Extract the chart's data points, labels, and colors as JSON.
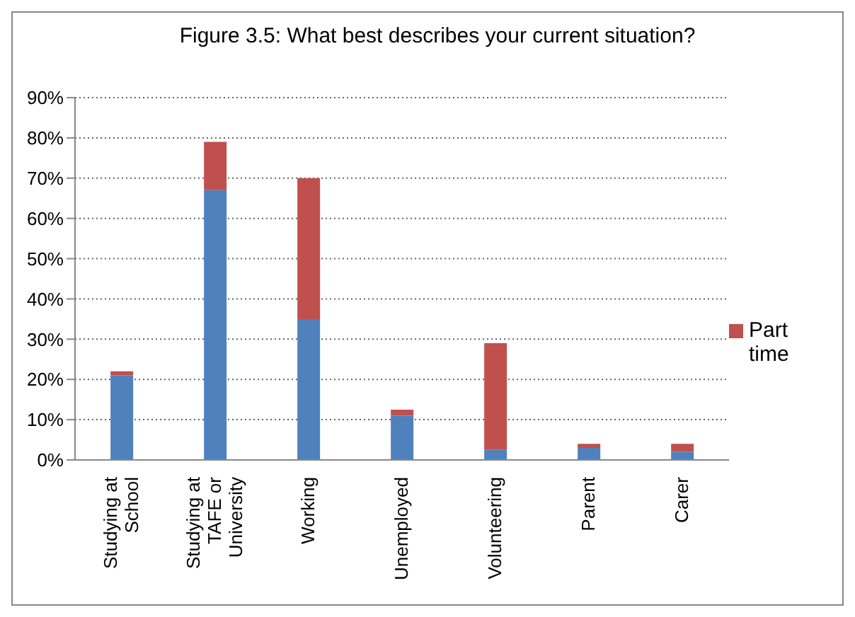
{
  "chart_data": {
    "type": "bar",
    "title": "Figure 3.5: What best describes your current situation?",
    "categories": [
      "Studying at School",
      "Studying at TAFE or University",
      "Working",
      "Unemployed",
      "Volunteering",
      "Parent",
      "Carer"
    ],
    "stacked": true,
    "series": [
      {
        "color": "#4f81bd",
        "values": [
          21,
          67,
          35,
          11,
          2.5,
          3,
          2
        ]
      },
      {
        "name": "Part time",
        "color": "#c0504d",
        "values": [
          1,
          12,
          35,
          1.5,
          26.5,
          1,
          2
        ]
      }
    ],
    "ylim": [
      0,
      90
    ],
    "yticks": [
      {
        "value": 0,
        "label": "0%"
      },
      {
        "value": 10,
        "label": "10%"
      },
      {
        "value": 20,
        "label": "20%"
      },
      {
        "value": 30,
        "label": "30%"
      },
      {
        "value": 40,
        "label": "40%"
      },
      {
        "value": 50,
        "label": "50%"
      },
      {
        "value": 60,
        "label": "60%"
      },
      {
        "value": 70,
        "label": "70%"
      },
      {
        "value": 80,
        "label": "80%"
      },
      {
        "value": 90,
        "label": "90%"
      }
    ],
    "grid": "y",
    "legend": "right"
  }
}
